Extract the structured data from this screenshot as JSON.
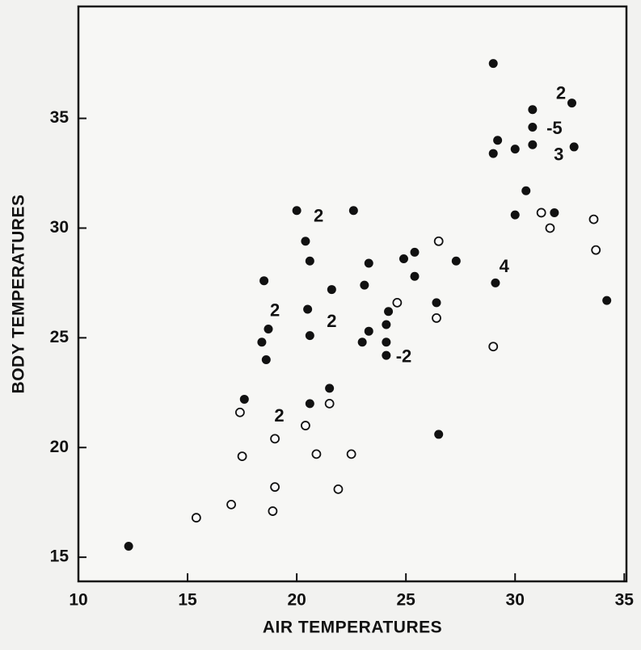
{
  "chart_data": {
    "type": "scatter",
    "xlabel": "AIR TEMPERATURES",
    "ylabel": "BODY TEMPERATURES",
    "xlim": [
      10,
      35.1
    ],
    "ylim": [
      13.9,
      40.1
    ],
    "xticks": [
      10,
      15,
      20,
      25,
      30,
      35
    ],
    "yticks": [
      15,
      20,
      25,
      30,
      35
    ],
    "series": [
      {
        "name": null,
        "color": "#111111",
        "fill": true,
        "x": [
          12.3,
          17.6,
          18.5,
          18.4,
          18.6,
          18.7,
          20.0,
          20.4,
          20.6,
          20.5,
          20.6,
          20.6,
          21.6,
          21.5,
          22.6,
          23.1,
          23.3,
          23.0,
          23.3,
          24.2,
          24.1,
          24.1,
          24.1,
          24.9,
          25.4,
          25.4,
          26.4,
          26.5,
          27.3,
          29.0,
          29.0,
          29.2,
          29.1,
          30.0,
          30.0,
          30.5,
          30.8,
          30.8,
          31.8,
          32.6,
          32.7,
          34.2,
          30.8
        ],
        "y": [
          15.5,
          22.2,
          27.6,
          24.8,
          24.0,
          25.4,
          30.8,
          29.4,
          28.5,
          26.3,
          25.1,
          22.0,
          27.2,
          22.7,
          30.8,
          27.4,
          28.4,
          24.8,
          25.3,
          26.2,
          25.6,
          24.8,
          24.2,
          28.6,
          28.9,
          27.8,
          26.6,
          20.6,
          28.5,
          37.5,
          33.4,
          34.0,
          27.5,
          33.6,
          30.6,
          31.7,
          33.8,
          35.4,
          30.7,
          35.7,
          33.7,
          26.7,
          34.6
        ]
      },
      {
        "name": null,
        "color": "#111111",
        "fill": false,
        "x": [
          15.4,
          17.0,
          17.4,
          17.5,
          18.9,
          19.0,
          19.0,
          20.4,
          20.9,
          21.5,
          21.9,
          22.5,
          24.6,
          26.5,
          26.4,
          29.0,
          31.2,
          31.6,
          33.6,
          33.7
        ],
        "y": [
          16.8,
          17.4,
          21.6,
          19.6,
          17.1,
          18.2,
          20.4,
          21.0,
          19.7,
          22.0,
          18.1,
          19.7,
          26.6,
          29.4,
          25.9,
          24.6,
          30.7,
          30.0,
          30.4,
          29.0
        ]
      }
    ],
    "annotations": [
      {
        "text": "2",
        "x": 21.0,
        "y": 30.5
      },
      {
        "text": "2",
        "x": 19.0,
        "y": 26.2
      },
      {
        "text": "2",
        "x": 21.6,
        "y": 25.7
      },
      {
        "text": "-2",
        "x": 24.9,
        "y": 24.1
      },
      {
        "text": "2",
        "x": 19.2,
        "y": 21.4
      },
      {
        "text": "4",
        "x": 29.5,
        "y": 28.2
      },
      {
        "text": "2",
        "x": 32.1,
        "y": 36.1
      },
      {
        "text": "-5",
        "x": 31.8,
        "y": 34.5
      },
      {
        "text": "3",
        "x": 32.0,
        "y": 33.3
      }
    ]
  }
}
